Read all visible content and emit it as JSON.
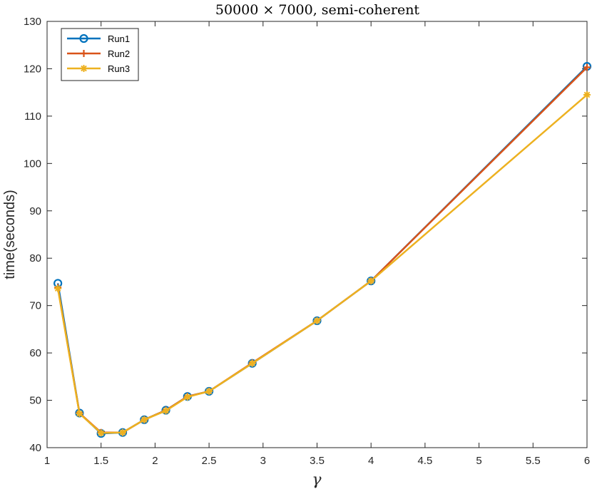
{
  "chart_data": {
    "type": "line",
    "title": "50000 × 7000, semi-coherent",
    "xlabel": "γ",
    "ylabel": "time(seconds)",
    "xlim": [
      1,
      6
    ],
    "ylim": [
      40,
      130
    ],
    "xticks": [
      "1",
      "1.5",
      "2",
      "2.5",
      "3",
      "3.5",
      "4",
      "4.5",
      "5",
      "5.5",
      "6"
    ],
    "yticks": [
      "40",
      "50",
      "60",
      "70",
      "80",
      "90",
      "100",
      "110",
      "120",
      "130"
    ],
    "legend_position": "top-left",
    "x": [
      1.1,
      1.3,
      1.5,
      1.7,
      1.9,
      2.1,
      2.3,
      2.5,
      2.9,
      3.5,
      4,
      6
    ],
    "series": [
      {
        "name": "Run1",
        "color": "#0072BD",
        "marker": "circle",
        "values": [
          74.7,
          47.3,
          43.0,
          43.2,
          45.9,
          47.9,
          50.8,
          51.9,
          57.8,
          66.8,
          75.2,
          120.5
        ]
      },
      {
        "name": "Run2",
        "color": "#D95319",
        "marker": "plus",
        "values": [
          73.8,
          47.3,
          43.2,
          43.2,
          45.9,
          47.9,
          50.8,
          51.9,
          57.9,
          66.8,
          75.2,
          120.3
        ]
      },
      {
        "name": "Run3",
        "color": "#EDB120",
        "marker": "asterisk",
        "values": [
          73.6,
          47.2,
          43.1,
          43.2,
          45.9,
          47.8,
          50.7,
          51.9,
          57.8,
          66.8,
          75.2,
          114.5
        ]
      }
    ]
  }
}
